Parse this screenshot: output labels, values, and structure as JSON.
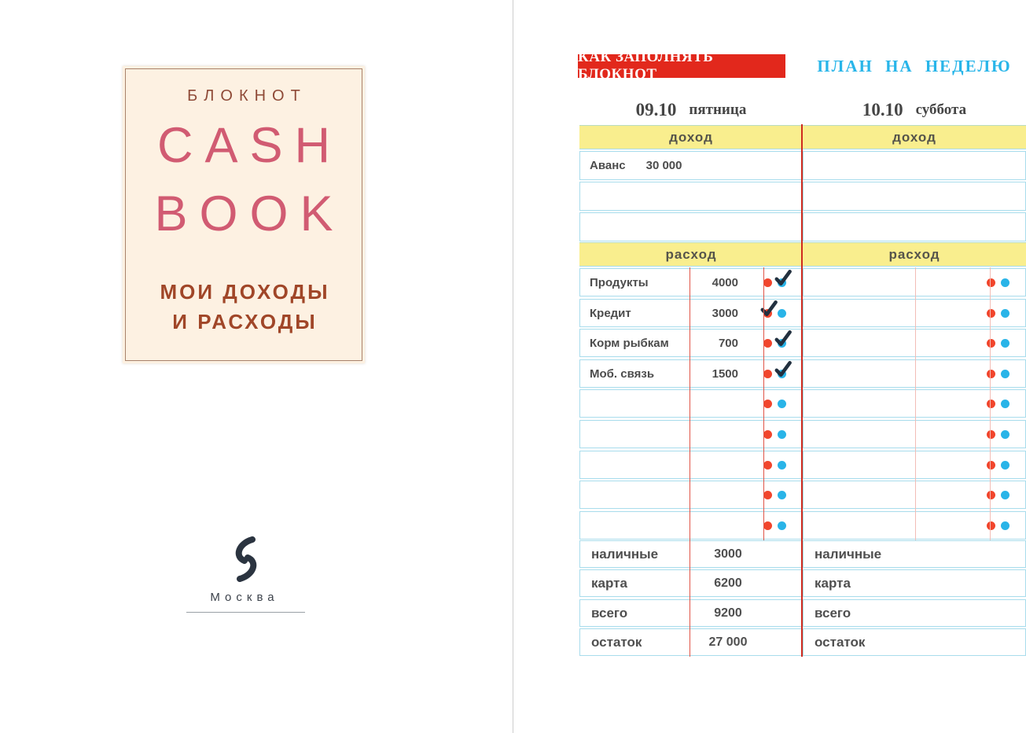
{
  "left_page": {
    "cover": {
      "kicker": "БЛОКНОТ",
      "title_line1": "CASH",
      "title_line2": "BOOK",
      "subtitle_line1": "МОИ ДОХОДЫ",
      "subtitle_line2": "И РАСХОДЫ",
      "colors": {
        "background": "#fdf1e2",
        "border": "#a8826b",
        "kicker_text": "#8f4a37",
        "title_text": "#d15b72",
        "subtitle_text": "#a04628"
      }
    },
    "publisher": {
      "logo_icon": "eksmo-swirl-icon",
      "city": "Москва"
    }
  },
  "right_page": {
    "header": {
      "badge_label": "КАК ЗАПОЛНЯТЬ БЛОКНОТ",
      "badge_bg": "#e2281c",
      "title": "ПЛАН НА НЕДЕЛЮ",
      "title_color": "#28b5e9"
    },
    "days": [
      {
        "date": "09.10",
        "weekday": "пятница",
        "income": {
          "header": "доход",
          "rows": [
            {
              "label": "Аванс",
              "amount": "30 000"
            },
            {
              "label": "",
              "amount": ""
            },
            {
              "label": "",
              "amount": ""
            }
          ]
        },
        "expense": {
          "header": "расход",
          "rows": [
            {
              "label": "Продукты",
              "amount": "4000",
              "checked": "blue"
            },
            {
              "label": "Кредит",
              "amount": "3000",
              "checked": "red"
            },
            {
              "label": "Корм рыбкам",
              "amount": "700",
              "checked": "blue"
            },
            {
              "label": "Моб. связь",
              "amount": "1500",
              "checked": "blue"
            },
            {
              "label": "",
              "amount": "",
              "checked": ""
            },
            {
              "label": "",
              "amount": "",
              "checked": ""
            },
            {
              "label": "",
              "amount": "",
              "checked": ""
            },
            {
              "label": "",
              "amount": "",
              "checked": ""
            },
            {
              "label": "",
              "amount": "",
              "checked": ""
            }
          ]
        },
        "summary": [
          {
            "label": "наличные",
            "value": "3000"
          },
          {
            "label": "карта",
            "value": "6200"
          },
          {
            "label": "всего",
            "value": "9200"
          },
          {
            "label": "остаток",
            "value": "27 000"
          }
        ]
      },
      {
        "date": "10.10",
        "weekday": "суббота",
        "income": {
          "header": "доход",
          "rows": [
            {
              "label": "",
              "amount": ""
            },
            {
              "label": "",
              "amount": ""
            },
            {
              "label": "",
              "amount": ""
            }
          ]
        },
        "expense": {
          "header": "расход",
          "rows": [
            {
              "label": "",
              "amount": "",
              "checked": ""
            },
            {
              "label": "",
              "amount": "",
              "checked": ""
            },
            {
              "label": "",
              "amount": "",
              "checked": ""
            },
            {
              "label": "",
              "amount": "",
              "checked": ""
            },
            {
              "label": "",
              "amount": "",
              "checked": ""
            },
            {
              "label": "",
              "amount": "",
              "checked": ""
            },
            {
              "label": "",
              "amount": "",
              "checked": ""
            },
            {
              "label": "",
              "amount": "",
              "checked": ""
            },
            {
              "label": "",
              "amount": "",
              "checked": ""
            }
          ]
        },
        "summary": [
          {
            "label": "наличные",
            "value": ""
          },
          {
            "label": "карта",
            "value": ""
          },
          {
            "label": "всего",
            "value": ""
          },
          {
            "label": "остаток",
            "value": ""
          }
        ]
      }
    ],
    "marker_icons": {
      "red_dot_icon": "#f1452c",
      "blue_dot_icon": "#29b4e8",
      "check_icon": "#22303f"
    },
    "table_colors": {
      "section_header_bg": "#f9ee8e",
      "row_border": "#a8dcec",
      "center_divider": "#cf2b1f",
      "column_separator_left": "#e05548",
      "column_separator_right": "#f2bdb6",
      "text": "#4c4c4c"
    }
  }
}
